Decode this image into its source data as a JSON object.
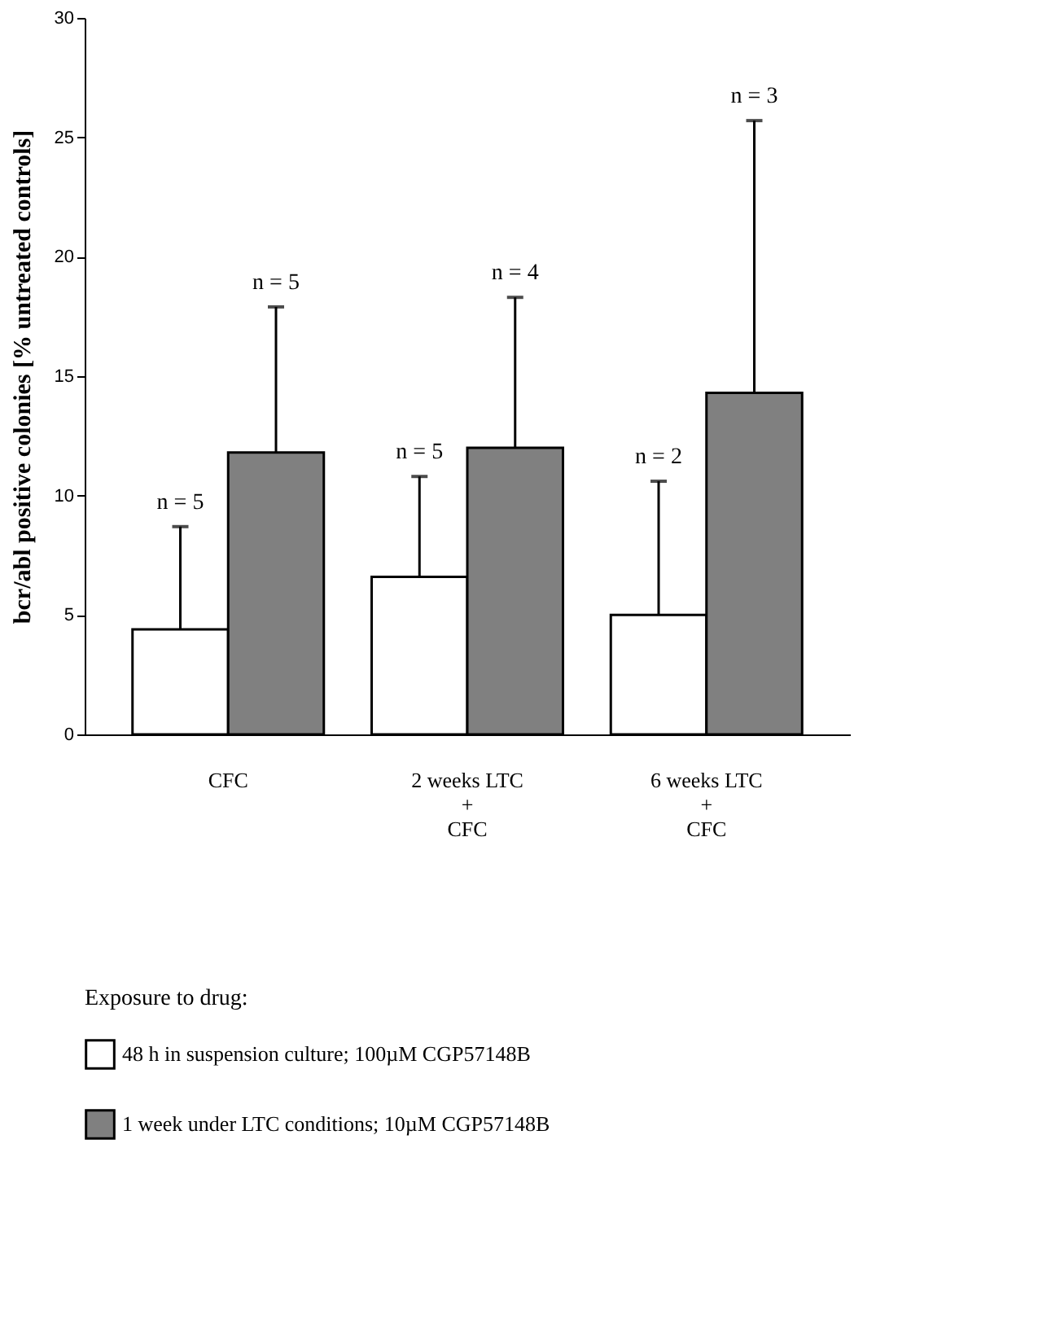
{
  "chart_data": {
    "type": "bar",
    "ylabel": "bcr/abl positive colonies [% untreated controls]",
    "legend_title": "Exposure to drug:",
    "categories": [
      "CFC",
      "2 weeks LTC\n+\nCFC",
      "6 weeks LTC\n+\nCFC"
    ],
    "series": [
      {
        "name": "48 h  in suspension culture; 100µM CGP57148B",
        "color": "#ffffff",
        "values": [
          4.4,
          6.6,
          5.0
        ],
        "errors": [
          [
            4.4,
            8.7
          ],
          [
            6.6,
            10.8
          ],
          [
            5.0,
            10.6
          ]
        ]
      },
      {
        "name": "1 week under LTC conditions; 10µM CGP57148B",
        "color": "#808080",
        "values": [
          11.8,
          12.0,
          14.3
        ],
        "errors": [
          [
            11.8,
            17.9
          ],
          [
            12.0,
            18.3
          ],
          [
            14.3,
            25.7
          ]
        ]
      }
    ],
    "annotations": [
      "n = 5",
      "n = 5",
      "n = 5",
      "n = 4",
      "n = 2",
      "n = 3"
    ],
    "ylim": [
      0,
      30
    ],
    "yticks": [
      0,
      5,
      10,
      15,
      20,
      25,
      30
    ],
    "grid": false,
    "legend": "bottom"
  }
}
